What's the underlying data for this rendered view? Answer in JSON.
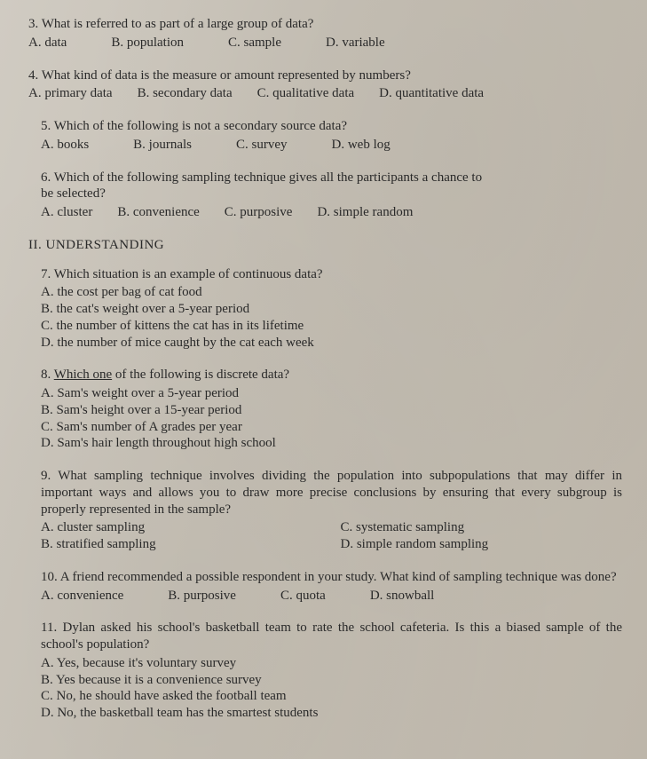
{
  "q3": {
    "num": "3.",
    "stem": "What is referred to as part of a large group of data?",
    "a": "A. data",
    "b": "B. population",
    "c": "C. sample",
    "d": "D. variable"
  },
  "q4": {
    "num": "4.",
    "stem": "What kind of data is the measure or amount represented by numbers?",
    "a": "A. primary data",
    "b": "B. secondary data",
    "c": "C. qualitative data",
    "d": "D. quantitative data"
  },
  "q5": {
    "num": "5.",
    "stem": "Which of the following is not a secondary source data?",
    "a": "A. books",
    "b": "B. journals",
    "c": "C. survey",
    "d": "D. web log"
  },
  "q6": {
    "num": "6.",
    "stem_line1": "Which of the following sampling technique gives all the participants a chance to",
    "stem_line2": "be selected?",
    "a": "A. cluster",
    "b": "B. convenience",
    "c": "C. purposive",
    "d": "D. simple random"
  },
  "section2": "II. UNDERSTANDING",
  "q7": {
    "num": "7.",
    "stem": "Which situation is an example of continuous data?",
    "a": "A. the cost per bag of cat food",
    "b": "B. the cat's weight over a 5-year period",
    "c": "C. the number of kittens the cat has in its lifetime",
    "d": "D. the number of mice caught by the cat each week"
  },
  "q8": {
    "num": "8.",
    "stem_pre": "Which one",
    "stem_post": " of the following is discrete data?",
    "a": "A. Sam's weight over a 5-year period",
    "b": "B. Sam's height over a 15-year period",
    "c": "C. Sam's number of A grades per year",
    "d": "D. Sam's hair length throughout high school"
  },
  "q9": {
    "num": "9.",
    "stem": "What sampling technique involves dividing the population into subpopulations that may differ in important ways and allows you to draw more precise conclusions by ensuring that every subgroup is properly represented in the sample?",
    "a": "A. cluster sampling",
    "b": "B. stratified sampling",
    "c": "C. systematic sampling",
    "d": "D. simple random sampling"
  },
  "q10": {
    "num": "10.",
    "stem": "A friend recommended a possible respondent in your study. What kind of sampling technique was done?",
    "a": "A. convenience",
    "b": "B. purposive",
    "c": "C. quota",
    "d": "D. snowball"
  },
  "q11": {
    "num": "11.",
    "stem": "Dylan asked his school's basketball team to rate the school cafeteria. Is this a biased sample of the school's population?",
    "a": "A. Yes, because it's voluntary survey",
    "b": "B. Yes because it is a convenience survey",
    "c": "C. No, he should have asked the football team",
    "d": "D. No, the basketball team has the smartest students"
  }
}
